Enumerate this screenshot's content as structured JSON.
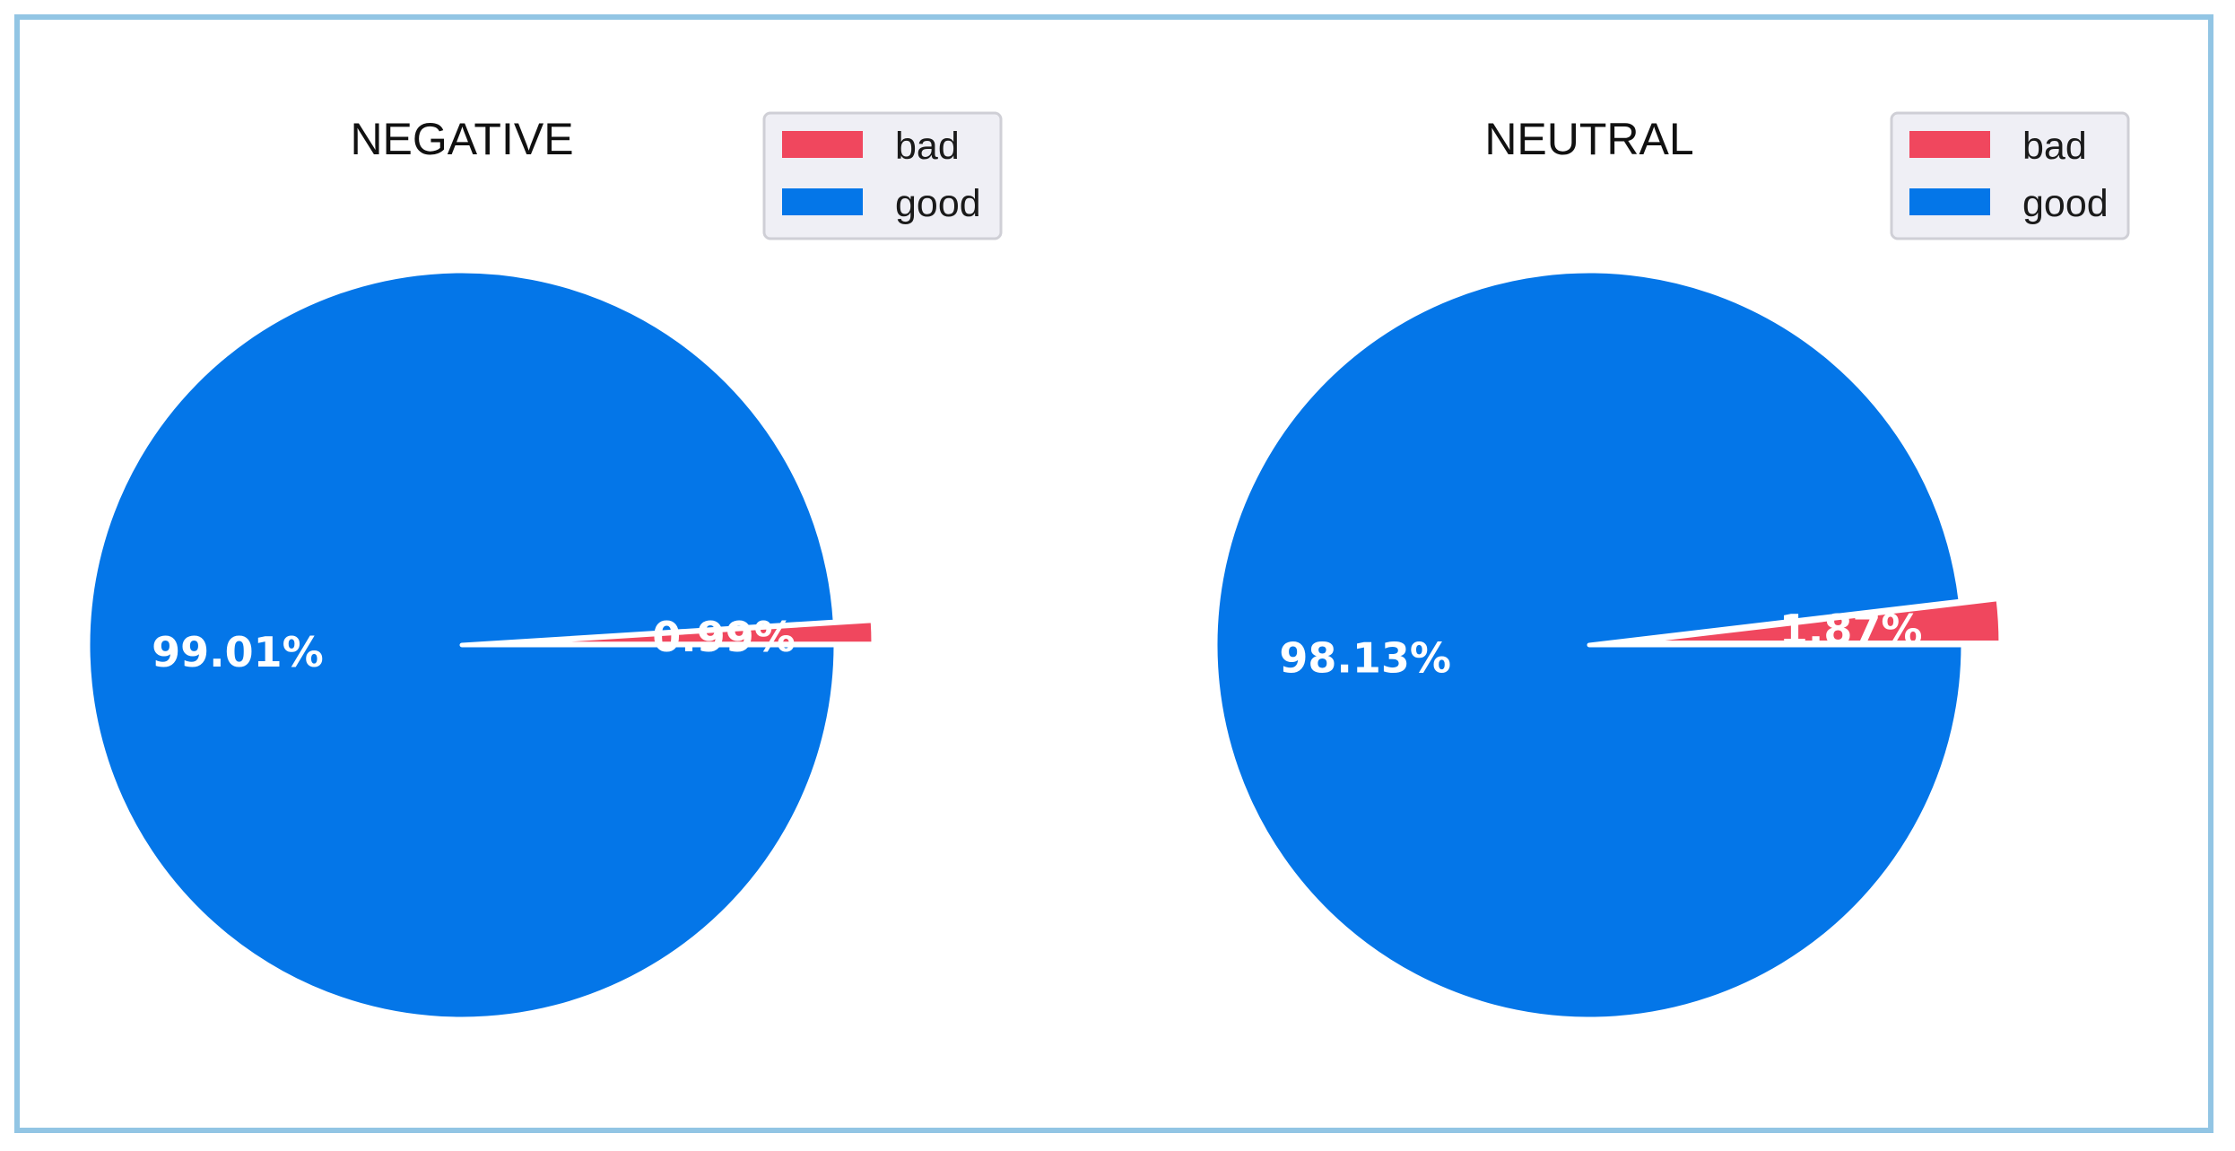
{
  "colors": {
    "bad": "#f0475e",
    "good": "#0476e8",
    "frame": "#92c5e4"
  },
  "chart_data": [
    {
      "type": "pie",
      "title": "NEGATIVE",
      "legend": "top-right",
      "categories": [
        "bad",
        "good"
      ],
      "values": [
        0.99,
        99.01
      ],
      "labels": [
        "0.99%",
        "99.01%"
      ],
      "explode": [
        "bad"
      ]
    },
    {
      "type": "pie",
      "title": "NEUTRAL",
      "legend": "top-right",
      "categories": [
        "bad",
        "good"
      ],
      "values": [
        1.87,
        98.13
      ],
      "labels": [
        "1.87%",
        "98.13%"
      ],
      "explode": [
        "bad"
      ]
    }
  ]
}
